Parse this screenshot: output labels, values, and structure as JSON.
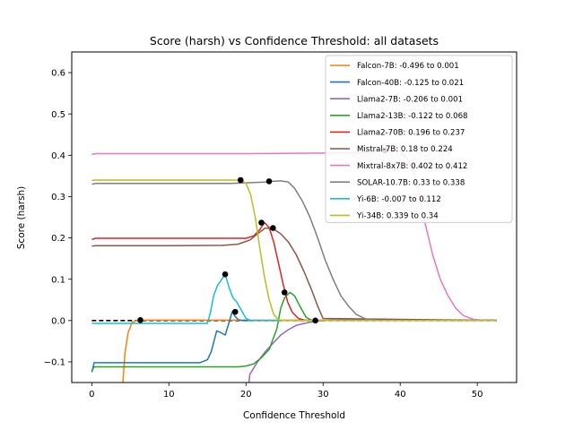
{
  "chart_data": {
    "type": "line",
    "title": "Score (harsh) vs Confidence Threshold: all datasets",
    "xlabel": "Confidence Threshold",
    "ylabel": "Score (harsh)",
    "xlim": [
      -2.6,
      55.1
    ],
    "ylim": [
      -0.15,
      0.65
    ],
    "xticks": [
      0,
      10,
      20,
      30,
      40,
      50
    ],
    "yticks": [
      -0.1,
      0.0,
      0.1,
      0.2,
      0.3,
      0.4,
      0.5,
      0.6
    ],
    "xtick_labels": [
      "0",
      "10",
      "20",
      "30",
      "40",
      "50"
    ],
    "ytick_labels": [
      "−0.1",
      "0.0",
      "0.1",
      "0.2",
      "0.3",
      "0.4",
      "0.5",
      "0.6"
    ],
    "grid": false,
    "legend_position": "upper right",
    "reference_line": {
      "y": 0.0,
      "style": "dashed",
      "color": "#000000"
    },
    "series": [
      {
        "name": "Falcon-7B: -0.496 to 0.001",
        "color": "#ff7f0e",
        "x": [
          4.0,
          4.3,
          4.7,
          5.2,
          5.8,
          6.4,
          52.5
        ],
        "y": [
          -0.16,
          -0.08,
          -0.03,
          -0.005,
          0.0,
          0.001,
          0.001
        ]
      },
      {
        "name": "Falcon-40B: -0.125 to 0.021",
        "color": "#1f77b4",
        "x": [
          0,
          0.3,
          1,
          14,
          15,
          15.5,
          16.2,
          16.8,
          17.3,
          17.8,
          18.2,
          18.6,
          19.0,
          19.5,
          20,
          52.5
        ],
        "y": [
          -0.125,
          -0.102,
          -0.102,
          -0.102,
          -0.095,
          -0.075,
          -0.025,
          -0.03,
          -0.035,
          -0.005,
          0.021,
          0.01,
          0.002,
          0.0,
          0.0,
          0.0
        ]
      },
      {
        "name": "Llama2-7B: -0.206 to 0.001",
        "color": "#9467bd",
        "x": [
          20,
          20.5,
          21.5,
          22.5,
          23.5,
          24.5,
          25.5,
          26.5,
          28,
          29.5,
          31,
          52.5
        ],
        "y": [
          -0.206,
          -0.13,
          -0.1,
          -0.075,
          -0.055,
          -0.035,
          -0.022,
          -0.012,
          -0.005,
          -0.001,
          0.001,
          0.001
        ]
      },
      {
        "name": "Llama2-13B: -0.122 to 0.068",
        "color": "#2ca02c",
        "x": [
          0,
          0.3,
          1,
          19,
          20,
          21,
          22,
          23,
          24,
          24.5,
          25,
          25.7,
          26.3,
          27,
          27.8,
          28.5,
          29,
          52.5
        ],
        "y": [
          -0.122,
          -0.112,
          -0.112,
          -0.112,
          -0.11,
          -0.105,
          -0.09,
          -0.07,
          -0.02,
          0.03,
          0.055,
          0.068,
          0.06,
          0.035,
          0.008,
          0.001,
          0.0,
          0.0
        ]
      },
      {
        "name": "Llama2-70B: 0.196 to 0.237",
        "color": "#d62728",
        "x": [
          0,
          0.5,
          18.5,
          20,
          21,
          21.8,
          22.4,
          23.0,
          23.6,
          24.2,
          24.8,
          25.4,
          26.0,
          26.8,
          27.6,
          28.5,
          29.2,
          52.5
        ],
        "y": [
          0.196,
          0.199,
          0.199,
          0.199,
          0.205,
          0.22,
          0.237,
          0.225,
          0.19,
          0.14,
          0.09,
          0.045,
          0.02,
          0.005,
          0.001,
          0.0,
          0.0,
          0.0
        ]
      },
      {
        "name": "Mistral-7B: 0.18 to 0.224",
        "color": "#8c564b",
        "x": [
          0,
          0.5,
          10,
          17,
          19,
          20.5,
          21.5,
          22.5,
          23.5,
          24.5,
          25.5,
          26.5,
          27.5,
          28.5,
          29.3,
          30,
          52.5
        ],
        "y": [
          0.18,
          0.181,
          0.181,
          0.182,
          0.185,
          0.195,
          0.21,
          0.224,
          0.222,
          0.21,
          0.19,
          0.16,
          0.12,
          0.075,
          0.035,
          0.005,
          0.0
        ]
      },
      {
        "name": "Mixtral-8x7B: 0.402 to 0.412",
        "color": "#e377c2",
        "x": [
          0,
          0.5,
          20,
          36,
          38,
          40,
          41,
          41.8,
          42.5,
          43.3,
          44.2,
          45.2,
          46.2,
          47.2,
          48.2,
          49.5,
          51,
          52.5
        ],
        "y": [
          0.402,
          0.404,
          0.404,
          0.406,
          0.412,
          0.41,
          0.39,
          0.355,
          0.3,
          0.23,
          0.16,
          0.1,
          0.06,
          0.03,
          0.012,
          0.003,
          0.0,
          0.0
        ]
      },
      {
        "name": "SOLAR-10.7B: 0.33 to 0.338",
        "color": "#7f7f7f",
        "x": [
          0,
          0.5,
          18,
          21,
          22.5,
          23.5,
          24.5,
          25.5,
          26.3,
          27.3,
          28.3,
          29.3,
          30.3,
          31.3,
          32.3,
          33.3,
          34.3,
          35.5,
          37,
          52.5
        ],
        "y": [
          0.33,
          0.332,
          0.332,
          0.334,
          0.335,
          0.337,
          0.338,
          0.335,
          0.32,
          0.29,
          0.25,
          0.2,
          0.145,
          0.1,
          0.06,
          0.035,
          0.015,
          0.004,
          0.0,
          0.0
        ]
      },
      {
        "name": "Yi-6B: -0.007 to 0.112",
        "color": "#17becf",
        "x": [
          0,
          15,
          15.4,
          15.8,
          16.3,
          16.8,
          17.3,
          17.8,
          18.3,
          18.8,
          19.4,
          20.0,
          20.6,
          52.5
        ],
        "y": [
          -0.007,
          -0.007,
          0.02,
          0.06,
          0.085,
          0.098,
          0.112,
          0.08,
          0.055,
          0.045,
          0.025,
          0.005,
          0.0,
          0.0
        ]
      },
      {
        "name": "Yi-34B: 0.339 to 0.34",
        "color": "#bcbd22",
        "x": [
          0,
          0.5,
          19.3,
          20.0,
          20.6,
          21.2,
          21.8,
          22.4,
          23.0,
          23.6,
          24.2,
          24.8,
          52.5
        ],
        "y": [
          0.339,
          0.34,
          0.34,
          0.332,
          0.305,
          0.25,
          0.175,
          0.105,
          0.05,
          0.015,
          0.002,
          0.0,
          0.0
        ]
      }
    ],
    "markers": [
      {
        "x": 6.3,
        "y": 0.001
      },
      {
        "x": 18.6,
        "y": 0.021
      },
      {
        "x": 17.3,
        "y": 0.112
      },
      {
        "x": 19.3,
        "y": 0.34
      },
      {
        "x": 22.0,
        "y": 0.237
      },
      {
        "x": 23.5,
        "y": 0.224
      },
      {
        "x": 23.0,
        "y": 0.337
      },
      {
        "x": 25.0,
        "y": 0.068
      },
      {
        "x": 29.0,
        "y": 0.0
      },
      {
        "x": 38.0,
        "y": 0.412
      }
    ]
  }
}
